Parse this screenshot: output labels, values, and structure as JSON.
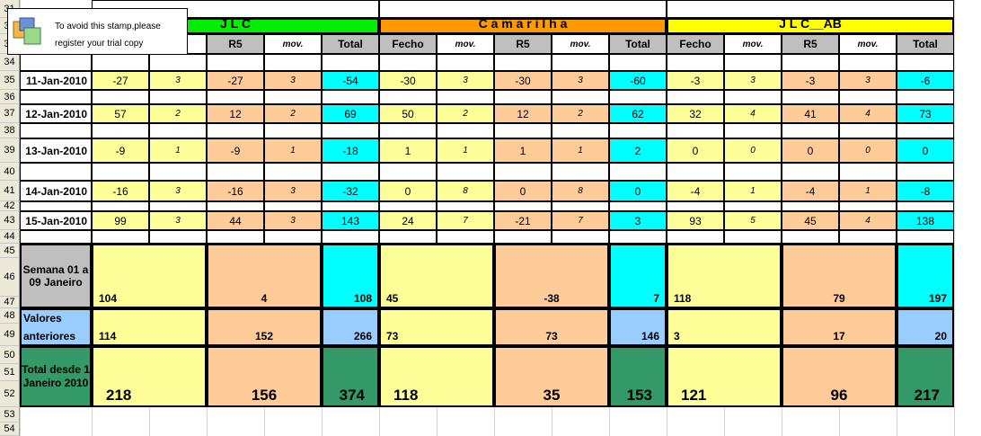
{
  "stamp": {
    "line1": "To avoid this stamp,please",
    "line2": "register your trial copy"
  },
  "row_numbers": [
    "31",
    "32",
    "33",
    "34",
    "35",
    "36",
    "37",
    "38",
    "39",
    "40",
    "41",
    "42",
    "43",
    "44",
    "45",
    "46",
    "47",
    "48",
    "49",
    "50",
    "51",
    "52",
    "53",
    "54"
  ],
  "groups": [
    {
      "name": "J  L  C",
      "color": "#00ee00"
    },
    {
      "name": "C a m a r i l h a",
      "color": "#ff9900"
    },
    {
      "name": "J L C__AB",
      "color": "#ffff00"
    }
  ],
  "headers": {
    "dia": "Dia",
    "cols": [
      "Fecho",
      "mov.",
      "R5",
      "mov.",
      "Total"
    ]
  },
  "days": [
    {
      "date": "11-Jan-2010",
      "vals": [
        [
          "-27",
          "3",
          "-27",
          "3",
          "-54"
        ],
        [
          "-30",
          "3",
          "-30",
          "3",
          "-60"
        ],
        [
          "-3",
          "3",
          "-3",
          "3",
          "-6"
        ]
      ]
    },
    {
      "date": "12-Jan-2010",
      "vals": [
        [
          "57",
          "2",
          "12",
          "2",
          "69"
        ],
        [
          "50",
          "2",
          "12",
          "2",
          "62"
        ],
        [
          "32",
          "4",
          "41",
          "4",
          "73"
        ]
      ]
    },
    {
      "date": "13-Jan-2010",
      "vals": [
        [
          "-9",
          "1",
          "-9",
          "1",
          "-18"
        ],
        [
          "1",
          "1",
          "1",
          "1",
          "2"
        ],
        [
          "0",
          "0",
          "0",
          "0",
          "0"
        ]
      ]
    },
    {
      "date": "14-Jan-2010",
      "vals": [
        [
          "-16",
          "3",
          "-16",
          "3",
          "-32"
        ],
        [
          "0",
          "8",
          "0",
          "8",
          "0"
        ],
        [
          "-4",
          "1",
          "-4",
          "1",
          "-8"
        ]
      ]
    },
    {
      "date": "15-Jan-2010",
      "vals": [
        [
          "99",
          "3",
          "44",
          "3",
          "143"
        ],
        [
          "24",
          "7",
          "-21",
          "7",
          "3"
        ],
        [
          "93",
          "5",
          "45",
          "4",
          "138"
        ]
      ]
    }
  ],
  "summary": {
    "week": {
      "label": "Semana 01 a 09 Janeiro",
      "vals": [
        [
          "104",
          "4",
          "108"
        ],
        [
          "45",
          "-38",
          "7"
        ],
        [
          "118",
          "79",
          "197"
        ]
      ]
    },
    "prev": {
      "label1": "Valores",
      "label2": "anteriores",
      "vals": [
        [
          "114",
          "152",
          "266"
        ],
        [
          "73",
          "73",
          "146"
        ],
        [
          "3",
          "17",
          "20"
        ]
      ]
    },
    "total": {
      "label": "Total desde 1 Janeiro 2010",
      "vals": [
        [
          "218",
          "156",
          "374"
        ],
        [
          "118",
          "35",
          "153"
        ],
        [
          "121",
          "96",
          "217"
        ]
      ]
    }
  },
  "colors": {
    "header_gray": "#bfbfbf",
    "fecho_yellow": "#ffff99",
    "r5_peach": "#ffcc99",
    "total_cyan": "#00ffff",
    "prev_blue": "#99ccff",
    "total_green": "#339966"
  }
}
